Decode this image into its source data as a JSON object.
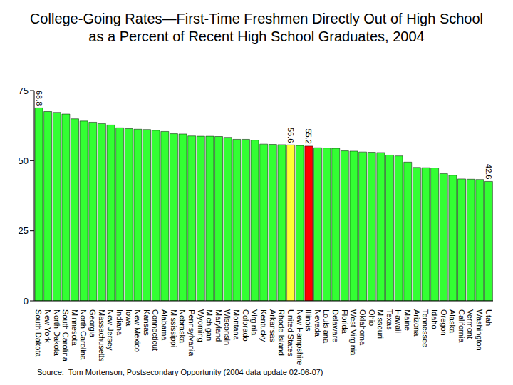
{
  "chart_data": {
    "type": "bar",
    "title": "College-Going Rates—First-Time Freshmen Directly Out of High School as a Percent of Recent High School Graduates, 2004",
    "annotations": [
      "Source:  Tom Mortenson, Postsecondary Opportunity (2004 data update 02-06-07)"
    ],
    "categories": [
      "South Dakota",
      "New York",
      "North Dakota",
      "South Carolina",
      "Minnesota",
      "North Carolina",
      "Georgia",
      "Massachusetts",
      "New Jersey",
      "Indiana",
      "Iowa",
      "New Mexico",
      "Kansas",
      "Connecticut",
      "Alabama",
      "Mississippi",
      "Nebraska",
      "Pennsylvania",
      "Wyoming",
      "Michigan",
      "Maryland",
      "Wisconsin",
      "Montana",
      "Colorado",
      "Virginia",
      "Kentucky",
      "Arkansas",
      "Rhode Island",
      "United States",
      "New Hampshire",
      "Illinois",
      "Nevada",
      "Louisiana",
      "Delaware",
      "Florida",
      "West Virginia",
      "Oklahoma",
      "Ohio",
      "Missouri",
      "Texas",
      "Hawaii",
      "Maine",
      "Arizona",
      "Tennessee",
      "Idaho",
      "Oregon",
      "Alaska",
      "California",
      "Vermont",
      "Washington",
      "Utah"
    ],
    "values": [
      68.8,
      67.5,
      67.2,
      66.6,
      64.9,
      64.1,
      63.7,
      63.2,
      62.7,
      61.7,
      61.4,
      61.2,
      61.1,
      60.8,
      60.4,
      59.6,
      59.5,
      58.8,
      58.7,
      58.7,
      58.6,
      58.3,
      57.6,
      57.6,
      57.3,
      55.9,
      55.8,
      55.7,
      55.6,
      55.4,
      55.2,
      54.6,
      54.5,
      54.4,
      53.5,
      53.4,
      53.1,
      53.0,
      52.9,
      52.0,
      51.7,
      49.5,
      47.6,
      47.5,
      47.4,
      45.4,
      44.8,
      43.5,
      43.4,
      43.3,
      42.6
    ],
    "value_labels": [
      "68.8",
      null,
      null,
      null,
      null,
      null,
      null,
      null,
      null,
      null,
      null,
      null,
      null,
      null,
      null,
      null,
      null,
      null,
      null,
      null,
      null,
      null,
      null,
      null,
      null,
      null,
      null,
      null,
      "55.6",
      null,
      "55.2",
      null,
      null,
      null,
      null,
      null,
      null,
      null,
      null,
      null,
      null,
      null,
      null,
      null,
      null,
      null,
      null,
      null,
      null,
      null,
      "42.6"
    ],
    "data_labels": true,
    "colors": [
      "#33ff33",
      "#33ff33",
      "#33ff33",
      "#33ff33",
      "#33ff33",
      "#33ff33",
      "#33ff33",
      "#33ff33",
      "#33ff33",
      "#33ff33",
      "#33ff33",
      "#33ff33",
      "#33ff33",
      "#33ff33",
      "#33ff33",
      "#33ff33",
      "#33ff33",
      "#33ff33",
      "#33ff33",
      "#33ff33",
      "#33ff33",
      "#33ff33",
      "#33ff33",
      "#33ff33",
      "#33ff33",
      "#33ff33",
      "#33ff33",
      "#33ff33",
      "#ffff33",
      "#33ff33",
      "#ff0000",
      "#33ff33",
      "#33ff33",
      "#33ff33",
      "#33ff33",
      "#33ff33",
      "#33ff33",
      "#33ff33",
      "#33ff33",
      "#33ff33",
      "#33ff33",
      "#33ff33",
      "#33ff33",
      "#33ff33",
      "#33ff33",
      "#33ff33",
      "#33ff33",
      "#33ff33",
      "#33ff33",
      "#33ff33",
      "#33ff33"
    ],
    "ylim": [
      0,
      75
    ],
    "yticks": [
      0,
      25,
      50,
      75
    ],
    "grid": false
  }
}
